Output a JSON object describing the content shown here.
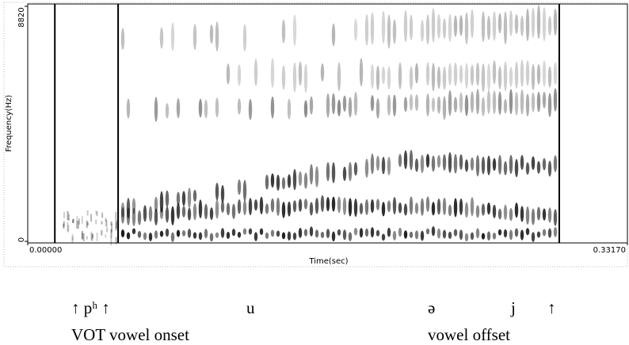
{
  "chart_data": {
    "type": "spectrogram",
    "y_label": "Frequency(Hz)",
    "x_label": "Time(sec)",
    "ylim": [
      0,
      8820
    ],
    "yticks": [
      0,
      8820
    ],
    "xlim": [
      0,
      0.3317
    ],
    "xticks": [
      {
        "value": 0,
        "label": "0.00000"
      },
      {
        "value": 0.3317,
        "label": "0.33170"
      }
    ],
    "boundaries": [
      0.015,
      0.05,
      0.294
    ],
    "annotations": {
      "row1": [
        "↑ pʰ ↑",
        "u",
        "ə",
        "j",
        "↑"
      ],
      "row2": [
        "VOT vowel onset",
        "vowel offset"
      ]
    }
  }
}
